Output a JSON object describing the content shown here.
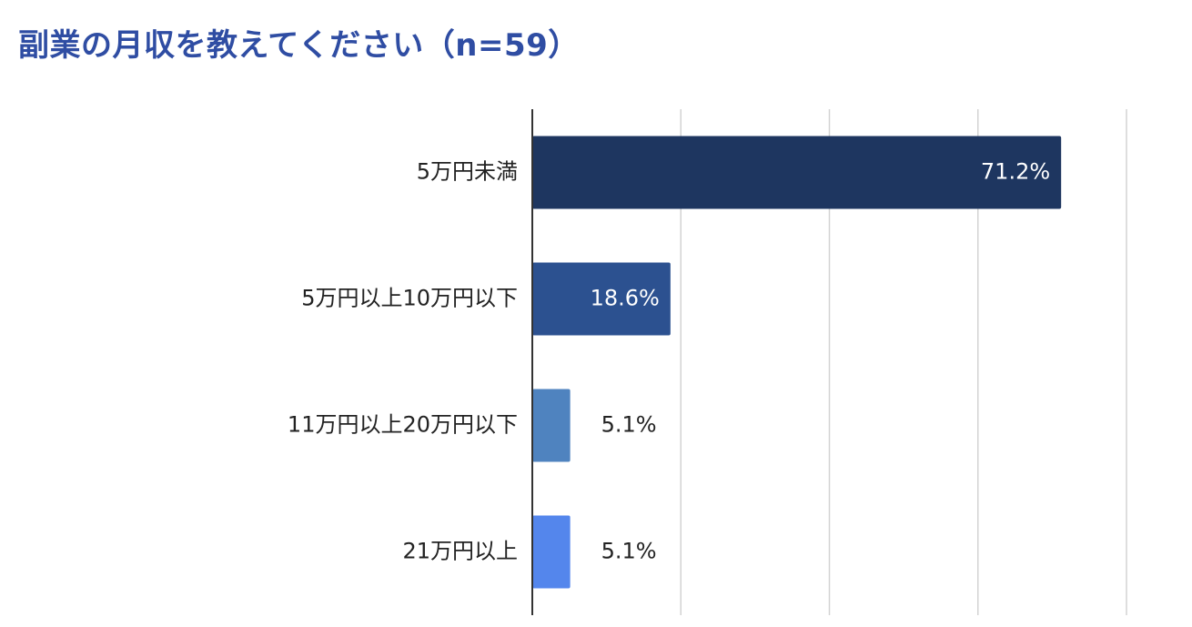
{
  "chart_data": {
    "type": "bar",
    "orientation": "horizontal",
    "title": "副業の月収を教えてください（n=59）",
    "categories": [
      "5万円未満",
      "5万円以上10万円以下",
      "11万円以上20万円以下",
      "21万円以上"
    ],
    "values": [
      71.2,
      18.6,
      5.1,
      5.1
    ],
    "value_labels": [
      "71.2%",
      "18.6%",
      "5.1%",
      "5.1%"
    ],
    "xlim": [
      0,
      80
    ],
    "grid": true,
    "legend": "none",
    "bar_colors": [
      "#1e3660",
      "#2c5190",
      "#4f83bf",
      "#5486ec"
    ],
    "title_color": "#2f4da3"
  }
}
